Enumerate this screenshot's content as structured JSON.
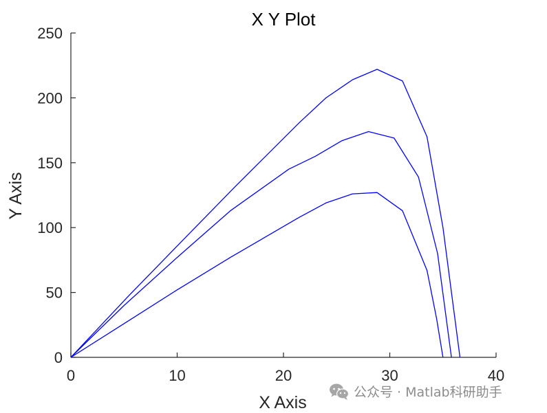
{
  "chart_data": {
    "type": "line",
    "title": "X Y Plot",
    "xlabel": "X Axis",
    "ylabel": "Y Axis",
    "xlim": [
      0,
      40
    ],
    "ylim": [
      0,
      250
    ],
    "xticks": [
      0,
      10,
      20,
      30,
      40
    ],
    "yticks": [
      0,
      50,
      100,
      150,
      200,
      250
    ],
    "grid": false,
    "line_color": "#0000ff",
    "axis_color": "#262626",
    "series": [
      {
        "x": [
          0,
          5.5,
          10.5,
          15.5,
          21.5,
          24.0,
          26.5,
          28.8,
          31.2,
          33.5,
          35.0,
          36.6
        ],
        "y": [
          0,
          48,
          90,
          132,
          181,
          200,
          214,
          222,
          213,
          170,
          100,
          0
        ]
      },
      {
        "x": [
          0,
          5.0,
          10.0,
          15.0,
          20.5,
          23.0,
          25.5,
          28.0,
          30.4,
          32.7,
          34.5,
          35.8
        ],
        "y": [
          0,
          40,
          77,
          113,
          145,
          155,
          167,
          174,
          169,
          139,
          80,
          0
        ]
      },
      {
        "x": [
          0,
          5.0,
          10.0,
          15.0,
          21.5,
          24.0,
          26.5,
          28.8,
          31.2,
          33.5,
          34.4,
          35.0
        ],
        "y": [
          0,
          26,
          52,
          77,
          108,
          119,
          126,
          127,
          113,
          67,
          30,
          0
        ]
      }
    ]
  },
  "watermark": {
    "text": "公众号 · Matlab科研助手",
    "icon": "wechat-icon"
  }
}
